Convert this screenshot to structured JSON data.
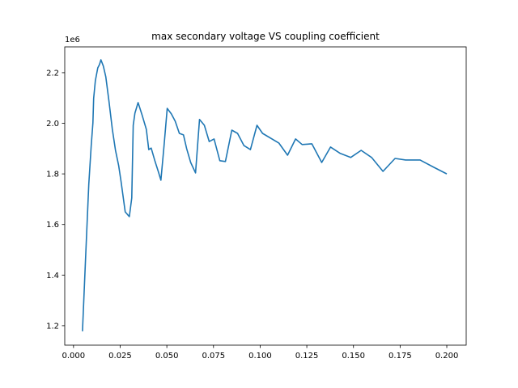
{
  "chart_data": {
    "type": "line",
    "title": "max secondary voltage VS coupling coefficient",
    "xlabel": "",
    "ylabel": "",
    "y_offset_label": "1e6",
    "xlim": [
      -0.0047,
      0.2104
    ],
    "ylim": [
      1.123,
      2.302
    ],
    "grid": false,
    "legend": null,
    "x_ticks": [
      0.0,
      0.025,
      0.05,
      0.075,
      0.1,
      0.125,
      0.15,
      0.175,
      0.2
    ],
    "x_tick_labels": [
      "0.000",
      "0.025",
      "0.050",
      "0.075",
      "0.100",
      "0.125",
      "0.150",
      "0.175",
      "0.200"
    ],
    "y_ticks": [
      1.2,
      1.4,
      1.6,
      1.8,
      2.0,
      2.2
    ],
    "y_tick_labels": [
      "1.2",
      "1.4",
      "1.6",
      "1.8",
      "2.0",
      "2.2"
    ],
    "line_color": "#1f77b4",
    "series": [
      {
        "name": "max secondary voltage",
        "x": [
          0.0048,
          0.0065,
          0.0082,
          0.0095,
          0.0104,
          0.0108,
          0.0117,
          0.013,
          0.0139,
          0.0147,
          0.016,
          0.0173,
          0.019,
          0.0208,
          0.0225,
          0.0242,
          0.0255,
          0.0277,
          0.0299,
          0.0312,
          0.032,
          0.0329,
          0.0346,
          0.0368,
          0.039,
          0.0403,
          0.0416,
          0.0437,
          0.0455,
          0.0468,
          0.0485,
          0.0502,
          0.0524,
          0.0545,
          0.0567,
          0.0589,
          0.0606,
          0.0628,
          0.0654,
          0.0675,
          0.0701,
          0.0727,
          0.0753,
          0.0784,
          0.0814,
          0.0848,
          0.0879,
          0.0913,
          0.0948,
          0.0983,
          0.1013,
          0.11,
          0.1147,
          0.119,
          0.1225,
          0.1277,
          0.133,
          0.1377,
          0.1429,
          0.1485,
          0.1541,
          0.1597,
          0.1658,
          0.1723,
          0.1779,
          0.1857,
          0.1931,
          0.2
        ],
        "values": [
          1.178,
          1.472,
          1.759,
          1.912,
          2.002,
          2.098,
          2.168,
          2.219,
          2.232,
          2.251,
          2.226,
          2.184,
          2.088,
          1.976,
          1.893,
          1.833,
          1.769,
          1.65,
          1.631,
          1.705,
          1.992,
          2.04,
          2.082,
          2.031,
          1.976,
          1.896,
          1.902,
          1.849,
          1.807,
          1.775,
          1.912,
          2.059,
          2.037,
          2.008,
          1.96,
          1.954,
          1.9,
          1.845,
          1.804,
          2.015,
          1.992,
          1.928,
          1.938,
          1.852,
          1.849,
          1.973,
          1.96,
          1.912,
          1.896,
          1.992,
          1.96,
          1.922,
          1.874,
          1.938,
          1.916,
          1.919,
          1.845,
          1.906,
          1.881,
          1.865,
          1.893,
          1.865,
          1.81,
          1.861,
          1.855,
          1.855,
          1.826,
          1.8
        ]
      }
    ]
  }
}
